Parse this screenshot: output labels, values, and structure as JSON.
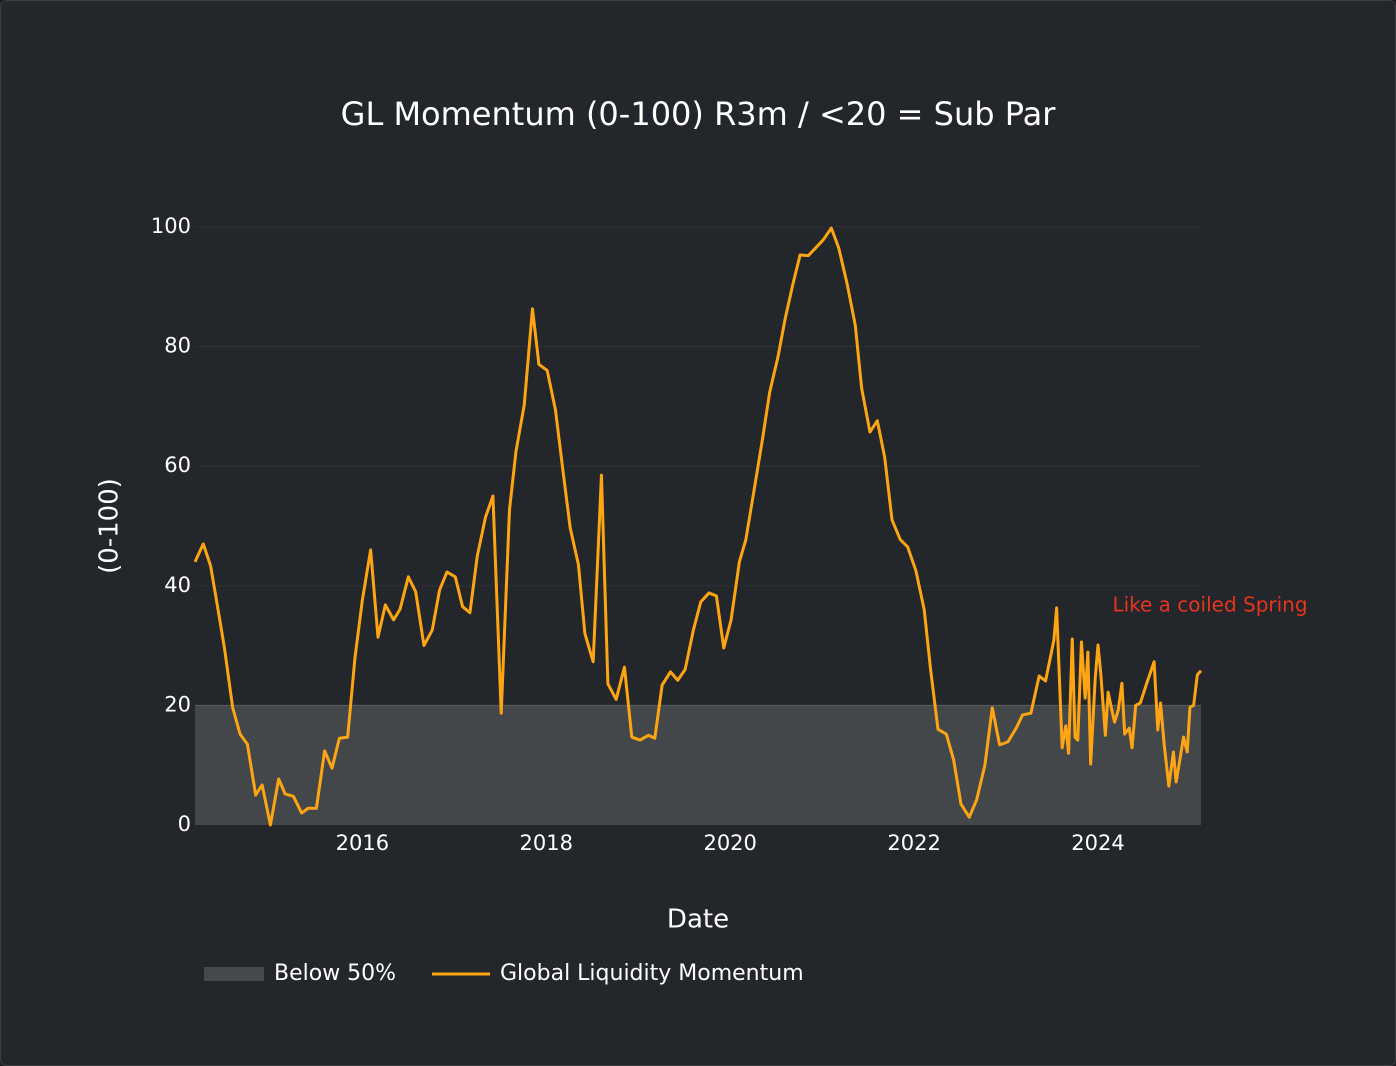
{
  "chart_data": {
    "type": "line",
    "title": "GL Momentum (0-100) R3m / <20 = Sub Par",
    "x_label": "Date",
    "y_label": "(0-100)",
    "annotation": "Like a coiled Spring",
    "annotation_color": "#e8341c",
    "xlim": [
      2014.18,
      2025.12
    ],
    "xticks": [
      2016,
      2018,
      2020,
      2022,
      2024
    ],
    "ylim": [
      0,
      105
    ],
    "yticks": [
      0,
      20,
      40,
      60,
      80,
      100
    ],
    "grid": true,
    "band": {
      "name": "Below 50%",
      "y0": 0,
      "y1": 20,
      "color": "#46494c"
    },
    "x": [
      2014.18,
      2014.27,
      2014.35,
      2014.42,
      2014.5,
      2014.59,
      2014.67,
      2014.75,
      2014.84,
      2014.91,
      2015.0,
      2015.09,
      2015.16,
      2015.25,
      2015.34,
      2015.41,
      2015.5,
      2015.59,
      2015.67,
      2015.75,
      2015.84,
      2015.92,
      2016.0,
      2016.09,
      2016.17,
      2016.25,
      2016.34,
      2016.41,
      2016.5,
      2016.58,
      2016.67,
      2016.76,
      2016.84,
      2016.92,
      2017.01,
      2017.09,
      2017.17,
      2017.25,
      2017.34,
      2017.42,
      2017.51,
      2017.6,
      2017.67,
      2017.76,
      2017.85,
      2017.92,
      2018.01,
      2018.1,
      2018.18,
      2018.26,
      2018.35,
      2018.42,
      2018.51,
      2018.6,
      2018.67,
      2018.76,
      2018.85,
      2018.93,
      2019.02,
      2019.11,
      2019.18,
      2019.26,
      2019.35,
      2019.43,
      2019.51,
      2019.6,
      2019.68,
      2019.77,
      2019.85,
      2019.93,
      2020.01,
      2020.1,
      2020.17,
      2020.26,
      2020.35,
      2020.43,
      2020.52,
      2020.6,
      2020.68,
      2020.76,
      2020.85,
      2020.93,
      2021.01,
      2021.1,
      2021.18,
      2021.27,
      2021.36,
      2021.43,
      2021.52,
      2021.6,
      2021.68,
      2021.76,
      2021.85,
      2021.93,
      2022.02,
      2022.11,
      2022.18,
      2022.26,
      2022.35,
      2022.43,
      2022.51,
      2022.6,
      2022.68,
      2022.77,
      2022.85,
      2022.93,
      2023.02,
      2023.11,
      2023.18,
      2023.27,
      2023.36,
      2023.43,
      2023.52,
      2023.55,
      2023.61,
      2023.65,
      2023.68,
      2023.72,
      2023.75,
      2023.78,
      2023.82,
      2023.86,
      2023.89,
      2023.92,
      2023.97,
      2024.0,
      2024.03,
      2024.08,
      2024.11,
      2024.14,
      2024.18,
      2024.22,
      2024.26,
      2024.29,
      2024.34,
      2024.37,
      2024.41,
      2024.46,
      2024.53,
      2024.61,
      2024.65,
      2024.68,
      2024.72,
      2024.77,
      2024.82,
      2024.85,
      2024.89,
      2024.93,
      2024.97,
      2025.0,
      2025.04,
      2025.08,
      2025.12
    ],
    "series": [
      {
        "name": "Global Liquidity Momentum",
        "color": "#ffa514",
        "values": [
          44,
          47,
          43.3,
          37,
          29.6,
          19.6,
          15.2,
          13.5,
          5,
          6.7,
          0,
          7.7,
          5.2,
          4.8,
          2,
          2.8,
          2.8,
          12.4,
          9.5,
          14.5,
          14.7,
          28,
          37.6,
          46,
          31.4,
          36.8,
          34.3,
          36.1,
          41.5,
          39,
          30,
          32.6,
          39.3,
          42.3,
          41.5,
          36.5,
          35.5,
          45,
          51.5,
          55,
          18.7,
          52.7,
          62.4,
          70.2,
          86.3,
          77,
          76,
          69.4,
          59.4,
          49.7,
          43.5,
          32,
          27.3,
          58.5,
          23.6,
          21,
          26.4,
          14.7,
          14.2,
          15,
          14.5,
          23.4,
          25.6,
          24.2,
          26,
          32.6,
          37.3,
          38.8,
          38.3,
          29.6,
          34.3,
          44,
          47.7,
          56,
          64.4,
          72.4,
          78.3,
          84.8,
          90.3,
          95.3,
          95.2,
          96.5,
          97.8,
          99.8,
          96.5,
          90.6,
          83.6,
          73,
          65.7,
          67.6,
          61.5,
          51,
          47.7,
          46.5,
          42.5,
          36,
          25.9,
          16,
          15.2,
          10.9,
          3.5,
          1.3,
          4.2,
          10,
          19.6,
          13.4,
          13.9,
          16.2,
          18.4,
          18.7,
          24.9,
          24.1,
          30.9,
          36.3,
          12.9,
          16.6,
          12,
          31.1,
          14.7,
          14.2,
          30.6,
          21.2,
          28.9,
          10.2,
          24.6,
          30.1,
          25.3,
          15,
          22.2,
          20,
          17.2,
          19.2,
          23.7,
          15.2,
          16.2,
          12.9,
          20,
          20.4,
          23.7,
          27.3,
          15.9,
          20.4,
          13.4,
          6.5,
          12.2,
          7.2,
          10.9,
          14.7,
          12.2,
          19.7,
          20,
          25.1,
          25.8
        ]
      }
    ]
  }
}
